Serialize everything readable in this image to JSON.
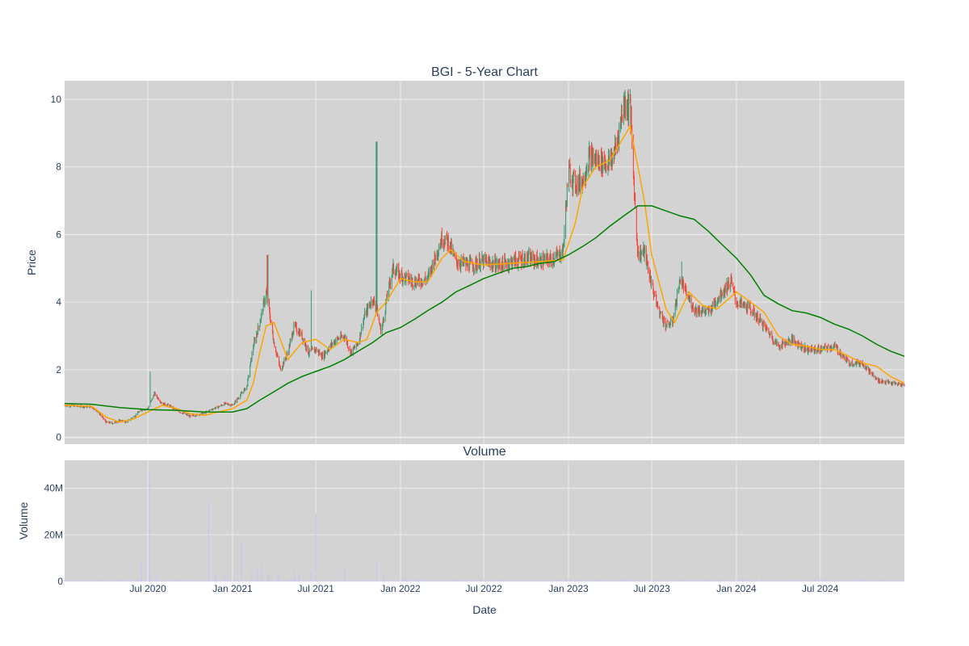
{
  "colors": {
    "plot_bg": "#d3d3d3",
    "grid": "#ebebeb",
    "increasing": "#3d9970",
    "decreasing": "#ff4136",
    "ma_short": "#ffa500",
    "ma_long": "#008000",
    "volume": "#c7c7ee",
    "text": "#2a3f5f"
  },
  "chart_data": [
    {
      "type": "candlestick",
      "title": "BGI - 5-Year Chart",
      "ylabel": "Price",
      "ylim": [
        -0.2,
        10.55
      ],
      "xlim": [
        "2020-01-02",
        "2024-12-31"
      ],
      "yticks": [
        0,
        2,
        4,
        6,
        8,
        10
      ],
      "grid": true,
      "legend": "none",
      "price_path": [
        [
          "2020-01-02",
          0.95
        ],
        [
          "2020-02-01",
          0.92
        ],
        [
          "2020-03-01",
          0.9
        ],
        [
          "2020-03-15",
          0.75
        ],
        [
          "2020-04-01",
          0.45
        ],
        [
          "2020-04-15",
          0.42
        ],
        [
          "2020-05-01",
          0.5
        ],
        [
          "2020-05-15",
          0.45
        ],
        [
          "2020-06-01",
          0.62
        ],
        [
          "2020-06-15",
          0.8
        ],
        [
          "2020-07-01",
          0.85
        ],
        [
          "2020-07-15",
          1.3
        ],
        [
          "2020-08-01",
          1.0
        ],
        [
          "2020-08-15",
          0.95
        ],
        [
          "2020-09-01",
          0.8
        ],
        [
          "2020-10-01",
          0.62
        ],
        [
          "2020-11-01",
          0.72
        ],
        [
          "2020-11-20",
          0.85
        ],
        [
          "2020-12-01",
          0.9
        ],
        [
          "2020-12-15",
          1.0
        ],
        [
          "2021-01-01",
          0.95
        ],
        [
          "2021-01-15",
          1.2
        ],
        [
          "2021-02-01",
          1.5
        ],
        [
          "2021-02-15",
          2.7
        ],
        [
          "2021-03-01",
          3.4
        ],
        [
          "2021-03-15",
          4.3
        ],
        [
          "2021-04-01",
          2.8
        ],
        [
          "2021-04-15",
          2.0
        ],
        [
          "2021-05-01",
          2.5
        ],
        [
          "2021-05-15",
          3.3
        ],
        [
          "2021-06-01",
          3.0
        ],
        [
          "2021-06-15",
          2.5
        ],
        [
          "2021-07-01",
          2.6
        ],
        [
          "2021-07-15",
          2.4
        ],
        [
          "2021-08-01",
          2.7
        ],
        [
          "2021-08-15",
          2.9
        ],
        [
          "2021-09-01",
          3.0
        ],
        [
          "2021-09-15",
          2.5
        ],
        [
          "2021-10-01",
          2.8
        ],
        [
          "2021-10-15",
          3.6
        ],
        [
          "2021-11-01",
          4.1
        ],
        [
          "2021-11-10",
          3.8
        ],
        [
          "2021-11-20",
          3.1
        ],
        [
          "2021-12-01",
          4.0
        ],
        [
          "2021-12-15",
          5.0
        ],
        [
          "2022-01-01",
          4.8
        ],
        [
          "2022-02-01",
          4.6
        ],
        [
          "2022-03-01",
          4.7
        ],
        [
          "2022-04-01",
          5.9
        ],
        [
          "2022-04-15",
          5.8
        ],
        [
          "2022-05-01",
          5.2
        ],
        [
          "2022-06-01",
          5.1
        ],
        [
          "2022-07-01",
          5.2
        ],
        [
          "2022-08-01",
          5.1
        ],
        [
          "2022-09-01",
          5.2
        ],
        [
          "2022-10-01",
          5.3
        ],
        [
          "2022-11-01",
          5.2
        ],
        [
          "2022-12-01",
          5.3
        ],
        [
          "2022-12-20",
          5.5
        ],
        [
          "2023-01-01",
          7.9
        ],
        [
          "2023-01-15",
          7.5
        ],
        [
          "2023-02-01",
          7.6
        ],
        [
          "2023-02-15",
          8.3
        ],
        [
          "2023-03-01",
          8.2
        ],
        [
          "2023-04-01",
          8.1
        ],
        [
          "2023-04-15",
          8.6
        ],
        [
          "2023-05-01",
          9.9
        ],
        [
          "2023-05-15",
          9.8
        ],
        [
          "2023-05-25",
          7.0
        ],
        [
          "2023-06-01",
          5.4
        ],
        [
          "2023-06-15",
          5.5
        ],
        [
          "2023-07-01",
          4.5
        ],
        [
          "2023-07-15",
          3.8
        ],
        [
          "2023-08-01",
          3.3
        ],
        [
          "2023-08-15",
          3.4
        ],
        [
          "2023-09-01",
          4.7
        ],
        [
          "2023-09-15",
          4.2
        ],
        [
          "2023-10-01",
          3.8
        ],
        [
          "2023-11-01",
          3.7
        ],
        [
          "2023-12-01",
          4.3
        ],
        [
          "2023-12-20",
          4.6
        ],
        [
          "2024-01-01",
          4.0
        ],
        [
          "2024-02-01",
          3.8
        ],
        [
          "2024-03-01",
          3.3
        ],
        [
          "2024-04-01",
          2.7
        ],
        [
          "2024-05-01",
          2.9
        ],
        [
          "2024-06-01",
          2.6
        ],
        [
          "2024-07-01",
          2.6
        ],
        [
          "2024-08-01",
          2.7
        ],
        [
          "2024-09-01",
          2.2
        ],
        [
          "2024-10-01",
          2.2
        ],
        [
          "2024-11-01",
          1.7
        ],
        [
          "2024-12-01",
          1.6
        ],
        [
          "2024-12-31",
          1.55
        ]
      ],
      "spikes": [
        [
          "2020-07-05",
          1.95
        ],
        [
          "2021-03-18",
          5.4
        ],
        [
          "2021-11-10",
          8.75
        ],
        [
          "2021-06-20",
          4.35
        ],
        [
          "2023-05-08",
          10.0
        ],
        [
          "2023-09-03",
          5.2
        ]
      ],
      "moving_averages": [
        {
          "color": "ma_short",
          "points": [
            [
              "2020-01-02",
              0.95
            ],
            [
              "2020-03-01",
              0.92
            ],
            [
              "2020-04-01",
              0.6
            ],
            [
              "2020-05-01",
              0.45
            ],
            [
              "2020-06-01",
              0.55
            ],
            [
              "2020-07-01",
              0.75
            ],
            [
              "2020-08-01",
              0.95
            ],
            [
              "2020-09-01",
              0.85
            ],
            [
              "2020-10-01",
              0.7
            ],
            [
              "2020-11-01",
              0.65
            ],
            [
              "2020-12-01",
              0.75
            ],
            [
              "2021-01-01",
              0.85
            ],
            [
              "2021-02-01",
              1.1
            ],
            [
              "2021-02-15",
              1.6
            ],
            [
              "2021-03-01",
              2.5
            ],
            [
              "2021-03-15",
              3.3
            ],
            [
              "2021-04-01",
              3.4
            ],
            [
              "2021-05-01",
              2.3
            ],
            [
              "2021-06-01",
              2.8
            ],
            [
              "2021-07-01",
              2.9
            ],
            [
              "2021-08-01",
              2.6
            ],
            [
              "2021-09-01",
              2.9
            ],
            [
              "2021-10-01",
              2.8
            ],
            [
              "2021-10-20",
              2.9
            ],
            [
              "2021-11-10",
              3.7
            ],
            [
              "2021-12-01",
              4.0
            ],
            [
              "2022-01-01",
              4.7
            ],
            [
              "2022-02-01",
              4.6
            ],
            [
              "2022-03-01",
              4.6
            ],
            [
              "2022-04-01",
              5.3
            ],
            [
              "2022-04-20",
              5.55
            ],
            [
              "2022-05-20",
              5.2
            ],
            [
              "2022-07-01",
              5.1
            ],
            [
              "2022-09-01",
              5.15
            ],
            [
              "2022-11-01",
              5.2
            ],
            [
              "2022-12-20",
              5.25
            ],
            [
              "2023-01-15",
              6.3
            ],
            [
              "2023-02-01",
              7.4
            ],
            [
              "2023-03-01",
              8.0
            ],
            [
              "2023-04-01",
              8.2
            ],
            [
              "2023-05-15",
              9.2
            ],
            [
              "2023-06-15",
              7.0
            ],
            [
              "2023-07-01",
              5.4
            ],
            [
              "2023-08-01",
              3.8
            ],
            [
              "2023-08-20",
              3.4
            ],
            [
              "2023-09-20",
              4.3
            ],
            [
              "2023-10-20",
              3.9
            ],
            [
              "2023-11-20",
              3.8
            ],
            [
              "2024-01-01",
              4.3
            ],
            [
              "2024-02-01",
              4.0
            ],
            [
              "2024-03-01",
              3.7
            ],
            [
              "2024-04-01",
              3.0
            ],
            [
              "2024-05-01",
              2.75
            ],
            [
              "2024-06-01",
              2.7
            ],
            [
              "2024-07-01",
              2.6
            ],
            [
              "2024-08-01",
              2.6
            ],
            [
              "2024-09-01",
              2.4
            ],
            [
              "2024-10-01",
              2.2
            ],
            [
              "2024-11-01",
              2.1
            ],
            [
              "2024-12-01",
              1.8
            ],
            [
              "2024-12-31",
              1.6
            ]
          ]
        },
        {
          "color": "ma_long",
          "points": [
            [
              "2020-01-02",
              1.0
            ],
            [
              "2020-03-01",
              0.98
            ],
            [
              "2020-05-01",
              0.88
            ],
            [
              "2020-07-01",
              0.82
            ],
            [
              "2020-09-01",
              0.8
            ],
            [
              "2020-11-01",
              0.75
            ],
            [
              "2021-01-01",
              0.75
            ],
            [
              "2021-02-01",
              0.85
            ],
            [
              "2021-03-01",
              1.1
            ],
            [
              "2021-04-01",
              1.35
            ],
            [
              "2021-05-01",
              1.6
            ],
            [
              "2021-06-01",
              1.8
            ],
            [
              "2021-07-01",
              1.95
            ],
            [
              "2021-08-01",
              2.1
            ],
            [
              "2021-09-01",
              2.3
            ],
            [
              "2021-10-01",
              2.55
            ],
            [
              "2021-11-01",
              2.8
            ],
            [
              "2021-12-01",
              3.1
            ],
            [
              "2022-01-01",
              3.25
            ],
            [
              "2022-02-01",
              3.5
            ],
            [
              "2022-03-01",
              3.75
            ],
            [
              "2022-04-01",
              4.0
            ],
            [
              "2022-05-01",
              4.3
            ],
            [
              "2022-06-01",
              4.5
            ],
            [
              "2022-07-01",
              4.7
            ],
            [
              "2022-08-01",
              4.85
            ],
            [
              "2022-09-01",
              5.0
            ],
            [
              "2022-10-01",
              5.05
            ],
            [
              "2022-11-01",
              5.15
            ],
            [
              "2022-12-01",
              5.2
            ],
            [
              "2023-01-01",
              5.4
            ],
            [
              "2023-02-01",
              5.65
            ],
            [
              "2023-03-01",
              5.9
            ],
            [
              "2023-04-01",
              6.25
            ],
            [
              "2023-05-01",
              6.55
            ],
            [
              "2023-06-01",
              6.85
            ],
            [
              "2023-07-01",
              6.85
            ],
            [
              "2023-08-01",
              6.7
            ],
            [
              "2023-09-01",
              6.55
            ],
            [
              "2023-10-01",
              6.45
            ],
            [
              "2023-11-01",
              6.1
            ],
            [
              "2023-12-01",
              5.7
            ],
            [
              "2024-01-01",
              5.3
            ],
            [
              "2024-02-01",
              4.8
            ],
            [
              "2024-03-01",
              4.2
            ],
            [
              "2024-04-01",
              3.95
            ],
            [
              "2024-05-01",
              3.75
            ],
            [
              "2024-06-01",
              3.68
            ],
            [
              "2024-07-01",
              3.55
            ],
            [
              "2024-08-01",
              3.35
            ],
            [
              "2024-09-01",
              3.2
            ],
            [
              "2024-10-01",
              3.0
            ],
            [
              "2024-11-01",
              2.75
            ],
            [
              "2024-12-01",
              2.55
            ],
            [
              "2024-12-31",
              2.4
            ]
          ]
        }
      ]
    },
    {
      "type": "bar",
      "title": "Volume",
      "xlabel": "Date",
      "ylabel": "Volume",
      "ylim": [
        0,
        52000000
      ],
      "yticks": [
        {
          "value": 0,
          "label": "0"
        },
        {
          "value": 20000000,
          "label": "20M"
        },
        {
          "value": 40000000,
          "label": "40M"
        }
      ],
      "xticks": [
        {
          "date": "2020-07-01",
          "label": "Jul 2020"
        },
        {
          "date": "2021-01-01",
          "label": "Jan 2021"
        },
        {
          "date": "2021-07-01",
          "label": "Jul 2021"
        },
        {
          "date": "2022-01-01",
          "label": "Jan 2022"
        },
        {
          "date": "2022-07-01",
          "label": "Jul 2022"
        },
        {
          "date": "2023-01-01",
          "label": "Jan 2023"
        },
        {
          "date": "2023-07-01",
          "label": "Jul 2023"
        },
        {
          "date": "2024-01-01",
          "label": "Jan 2024"
        },
        {
          "date": "2024-07-01",
          "label": "Jul 2024"
        }
      ],
      "spikes": [
        [
          "2020-06-17",
          7500000
        ],
        [
          "2020-07-05",
          47500000
        ],
        [
          "2020-07-20",
          3000000
        ],
        [
          "2020-11-10",
          35000000
        ],
        [
          "2020-11-25",
          4000000
        ],
        [
          "2020-12-15",
          3500000
        ],
        [
          "2021-01-05",
          3000000
        ],
        [
          "2021-01-20",
          16500000
        ],
        [
          "2021-02-10",
          4000000
        ],
        [
          "2021-02-25",
          5000000
        ],
        [
          "2021-03-05",
          6500000
        ],
        [
          "2021-03-20",
          3000000
        ],
        [
          "2021-04-10",
          3500000
        ],
        [
          "2021-05-15",
          4500000
        ],
        [
          "2021-05-25",
          3000000
        ],
        [
          "2021-06-20",
          4000000
        ],
        [
          "2021-07-01",
          29000000
        ],
        [
          "2021-09-01",
          5500000
        ],
        [
          "2021-11-10",
          8500000
        ],
        [
          "2021-11-25",
          2500000
        ],
        [
          "2022-01-10",
          1500000
        ]
      ]
    }
  ]
}
